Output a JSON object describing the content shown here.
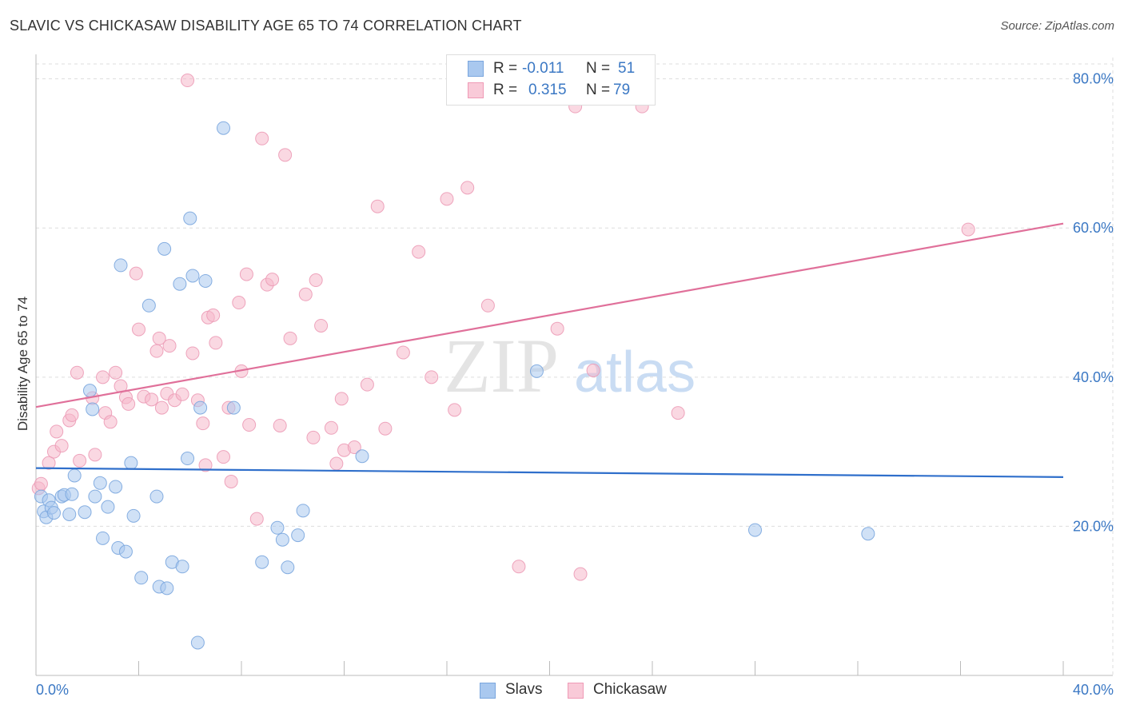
{
  "title": "SLAVIC VS CHICKASAW DISABILITY AGE 65 TO 74 CORRELATION CHART",
  "source": "Source: ZipAtlas.com",
  "watermark": {
    "zip": "ZIP",
    "atlas": "atlas"
  },
  "legend_top": {
    "rows": [
      {
        "r_label": "R =",
        "r_value": "-0.011",
        "n_label": "N =",
        "n_value": "51"
      },
      {
        "r_label": "R =",
        "r_value": "0.315",
        "n_label": "N =",
        "n_value": "79"
      }
    ]
  },
  "legend_bottom": {
    "items": [
      "Slavs",
      "Chickasaw"
    ]
  },
  "colors": {
    "slavs_fill": "#a9c8ef",
    "slavs_line": "#2f6fcb",
    "chickasaw_fill": "#f6b8cb",
    "chickasaw_line": "#e0709a",
    "axis_label": "#3b78c4",
    "grid": "#dddddd"
  },
  "chart_data": {
    "type": "scatter",
    "title": "SLAVIC VS CHICKASAW DISABILITY AGE 65 TO 74 CORRELATION CHART",
    "xlabel": "",
    "ylabel": "Disability Age 65 to 74",
    "xlim": [
      0,
      40
    ],
    "ylim": [
      0,
      82
    ],
    "x_tick_labels": [
      "0.0%",
      "40.0%"
    ],
    "y_tick_labels": [
      {
        "value": 20,
        "label": "20.0%"
      },
      {
        "value": 40,
        "label": "40.0%"
      },
      {
        "value": 60,
        "label": "60.0%"
      },
      {
        "value": 80,
        "label": "80.0%"
      }
    ],
    "grid": true,
    "legend_position": "top-center",
    "series": [
      {
        "name": "Slavs",
        "R": -0.011,
        "N": 51,
        "trend": {
          "x": [
            0,
            40
          ],
          "y": [
            27.8,
            26.6
          ]
        },
        "points": [
          [
            0.2,
            24.0
          ],
          [
            0.3,
            22.0
          ],
          [
            0.4,
            21.2
          ],
          [
            0.5,
            23.5
          ],
          [
            0.6,
            22.5
          ],
          [
            0.7,
            21.8
          ],
          [
            1.0,
            24.0
          ],
          [
            1.1,
            24.2
          ],
          [
            1.3,
            21.6
          ],
          [
            1.4,
            24.3
          ],
          [
            1.5,
            26.8
          ],
          [
            1.9,
            21.9
          ],
          [
            2.1,
            38.2
          ],
          [
            2.2,
            35.7
          ],
          [
            2.3,
            24.0
          ],
          [
            2.5,
            25.8
          ],
          [
            2.6,
            18.4
          ],
          [
            2.8,
            22.6
          ],
          [
            3.1,
            25.3
          ],
          [
            3.2,
            17.1
          ],
          [
            3.3,
            55.0
          ],
          [
            3.5,
            16.6
          ],
          [
            3.7,
            28.5
          ],
          [
            3.8,
            21.4
          ],
          [
            4.1,
            13.1
          ],
          [
            4.4,
            49.6
          ],
          [
            4.7,
            24.0
          ],
          [
            4.8,
            11.9
          ],
          [
            5.0,
            57.2
          ],
          [
            5.1,
            11.7
          ],
          [
            5.3,
            15.2
          ],
          [
            5.6,
            52.5
          ],
          [
            5.7,
            14.6
          ],
          [
            5.9,
            29.1
          ],
          [
            6.0,
            61.3
          ],
          [
            6.1,
            53.6
          ],
          [
            6.4,
            35.9
          ],
          [
            6.3,
            4.4
          ],
          [
            6.6,
            52.9
          ],
          [
            7.3,
            73.4
          ],
          [
            7.7,
            35.9
          ],
          [
            8.8,
            15.2
          ],
          [
            9.4,
            19.8
          ],
          [
            9.6,
            18.2
          ],
          [
            9.8,
            14.5
          ],
          [
            10.2,
            18.8
          ],
          [
            10.4,
            22.1
          ],
          [
            12.7,
            29.4
          ],
          [
            19.5,
            40.8
          ],
          [
            28.0,
            19.5
          ],
          [
            32.4,
            19.0
          ]
        ]
      },
      {
        "name": "Chickasaw",
        "R": 0.315,
        "N": 79,
        "trend": {
          "x": [
            0,
            40
          ],
          "y": [
            36.0,
            60.6
          ]
        },
        "points": [
          [
            0.1,
            25.1
          ],
          [
            0.2,
            25.7
          ],
          [
            0.5,
            28.5
          ],
          [
            0.7,
            30.0
          ],
          [
            0.8,
            32.7
          ],
          [
            1.0,
            30.8
          ],
          [
            1.3,
            34.2
          ],
          [
            1.4,
            34.9
          ],
          [
            1.6,
            40.6
          ],
          [
            1.7,
            28.8
          ],
          [
            2.2,
            37.2
          ],
          [
            2.3,
            29.6
          ],
          [
            2.6,
            40.0
          ],
          [
            2.7,
            35.2
          ],
          [
            2.9,
            34.0
          ],
          [
            3.1,
            40.6
          ],
          [
            3.3,
            38.8
          ],
          [
            3.5,
            37.3
          ],
          [
            3.6,
            36.4
          ],
          [
            3.9,
            53.9
          ],
          [
            4.0,
            46.4
          ],
          [
            4.2,
            37.4
          ],
          [
            4.5,
            37.0
          ],
          [
            4.7,
            43.5
          ],
          [
            4.8,
            45.2
          ],
          [
            4.9,
            35.9
          ],
          [
            5.1,
            37.8
          ],
          [
            5.2,
            44.2
          ],
          [
            5.4,
            36.9
          ],
          [
            5.7,
            37.7
          ],
          [
            6.1,
            43.2
          ],
          [
            6.3,
            36.9
          ],
          [
            6.5,
            33.8
          ],
          [
            6.6,
            28.2
          ],
          [
            6.7,
            48.0
          ],
          [
            6.9,
            48.3
          ],
          [
            7.0,
            44.6
          ],
          [
            7.3,
            29.3
          ],
          [
            7.5,
            35.9
          ],
          [
            7.6,
            26.0
          ],
          [
            7.9,
            50.0
          ],
          [
            8.0,
            40.8
          ],
          [
            8.2,
            53.8
          ],
          [
            8.3,
            33.6
          ],
          [
            8.6,
            21.0
          ],
          [
            8.8,
            72.0
          ],
          [
            9.0,
            52.4
          ],
          [
            9.2,
            53.1
          ],
          [
            9.5,
            33.5
          ],
          [
            9.7,
            69.8
          ],
          [
            9.9,
            45.2
          ],
          [
            10.5,
            51.1
          ],
          [
            10.8,
            31.9
          ],
          [
            10.9,
            53.0
          ],
          [
            11.1,
            46.9
          ],
          [
            11.5,
            33.2
          ],
          [
            11.7,
            28.4
          ],
          [
            11.9,
            37.1
          ],
          [
            12.0,
            30.2
          ],
          [
            12.4,
            30.6
          ],
          [
            12.9,
            39.0
          ],
          [
            13.3,
            62.9
          ],
          [
            13.6,
            33.1
          ],
          [
            14.3,
            43.3
          ],
          [
            14.9,
            56.8
          ],
          [
            15.4,
            40.0
          ],
          [
            16.0,
            63.9
          ],
          [
            16.3,
            35.6
          ],
          [
            16.8,
            65.4
          ],
          [
            17.6,
            49.6
          ],
          [
            18.8,
            14.6
          ],
          [
            20.3,
            46.5
          ],
          [
            21.0,
            76.3
          ],
          [
            21.2,
            13.6
          ],
          [
            21.7,
            40.9
          ],
          [
            23.6,
            76.3
          ],
          [
            25.0,
            35.2
          ],
          [
            36.3,
            59.8
          ],
          [
            5.9,
            79.8
          ]
        ]
      }
    ]
  }
}
